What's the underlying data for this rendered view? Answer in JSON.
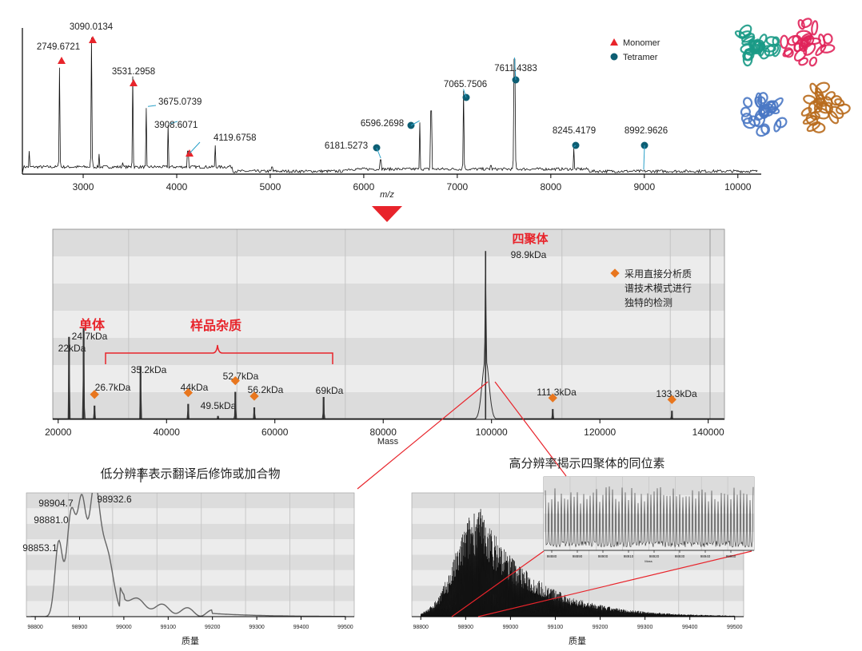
{
  "colors": {
    "red": "#e8242b",
    "teal": "#0d5e73",
    "orange": "#e8761e",
    "bandDark": "#dcdcdc",
    "bandLight": "#ececec",
    "trace": "#222222",
    "protein_teal": "#1a9a86",
    "protein_pink": "#e0245a",
    "protein_blue": "#4a78c4",
    "protein_brown": "#b86a1c"
  },
  "chart_data": [
    {
      "id": "native-ms",
      "type": "line",
      "xlabel": "m/z",
      "xlim": [
        2350,
        10250
      ],
      "xticks": [
        3000,
        4000,
        5000,
        6000,
        7000,
        8000,
        9000,
        10000
      ],
      "legend": {
        "position": "top-right",
        "entries": [
          {
            "name": "Monomer",
            "marker": "triangle"
          },
          {
            "name": "Tetramer",
            "marker": "circle"
          }
        ]
      },
      "peaks": [
        {
          "mz": 2749.6721,
          "label": "2749.6721",
          "height": 0.74,
          "marker": "triangle"
        },
        {
          "mz": 3090.0134,
          "label": "3090.0134",
          "height": 0.95,
          "marker": "triangle"
        },
        {
          "mz": 3531.2958,
          "label": "3531.2958",
          "height": 0.68,
          "marker": "triangle"
        },
        {
          "mz": 3675.0739,
          "label": "3675.0739",
          "height": 0.46,
          "marker": "none"
        },
        {
          "mz": 3908.6071,
          "label": "3908.6071",
          "height": 0.34,
          "marker": "none"
        },
        {
          "mz": 4119.6758,
          "label": "4119.6758",
          "height": 0.16,
          "marker": "triangle"
        },
        {
          "mz": 6181.5273,
          "label": "6181.5273",
          "height": 0.1,
          "marker": "circle"
        },
        {
          "mz": 6596.2698,
          "label": "6596.2698",
          "height": 0.36,
          "marker": "circle"
        },
        {
          "mz": 7065.7506,
          "label": "7065.7506",
          "height": 0.58,
          "marker": "circle"
        },
        {
          "mz": 7611.4383,
          "label": "7611.4383",
          "height": 0.8,
          "marker": "circle"
        },
        {
          "mz": 8245.4179,
          "label": "8245.4179",
          "height": 0.18,
          "marker": "circle"
        },
        {
          "mz": 8992.9626,
          "label": "8992.9626",
          "height": 0.02,
          "marker": "circle"
        }
      ],
      "minor_peaks": [
        {
          "mz": 2420,
          "height": 0.16
        },
        {
          "mz": 3170,
          "height": 0.14
        },
        {
          "mz": 3420,
          "height": 0.08
        },
        {
          "mz": 4410,
          "height": 0.2
        },
        {
          "mz": 4570,
          "height": 0.06
        },
        {
          "mz": 5020,
          "height": 0.05
        },
        {
          "mz": 6720,
          "height": 0.44
        },
        {
          "mz": 7360,
          "height": 0.06
        }
      ]
    },
    {
      "id": "deconvoluted",
      "type": "line",
      "xlabel": "Mass",
      "xlim": [
        19000,
        143000
      ],
      "xticks": [
        20000,
        40000,
        60000,
        80000,
        100000,
        120000,
        140000
      ],
      "peaks": [
        {
          "mass": 22000,
          "label": "22kDa",
          "height": 0.48,
          "diamond": false
        },
        {
          "mass": 24700,
          "label": "24.7kDa",
          "height": 0.53,
          "diamond": false
        },
        {
          "mass": 26700,
          "label": "26.7kDa",
          "height": 0.08,
          "diamond": true
        },
        {
          "mass": 35200,
          "label": "35.2kDa",
          "height": 0.31,
          "diamond": false
        },
        {
          "mass": 44000,
          "label": "44kDa",
          "height": 0.09,
          "diamond": true
        },
        {
          "mass": 49500,
          "label": "49.5kDa",
          "height": 0.02,
          "diamond": false
        },
        {
          "mass": 52700,
          "label": "52.7kDa",
          "height": 0.16,
          "diamond": true
        },
        {
          "mass": 56200,
          "label": "56.2kDa",
          "height": 0.07,
          "diamond": true
        },
        {
          "mass": 69000,
          "label": "69kDa",
          "height": 0.13,
          "diamond": false
        },
        {
          "mass": 98900,
          "label": "98.9kDa",
          "height": 0.98,
          "diamond": false
        },
        {
          "mass": 111300,
          "label": "111.3kDa",
          "height": 0.06,
          "diamond": true
        },
        {
          "mass": 133300,
          "label": "133.3kDa",
          "height": 0.05,
          "diamond": true
        }
      ],
      "annotations": {
        "monomer": "单体",
        "impurities": "样品杂质",
        "tetramer": "四聚体",
        "legend_line1": "采用直接分析质",
        "legend_line2": "谱技术模式进行",
        "legend_line3": "独特的检测"
      }
    },
    {
      "id": "low-res",
      "type": "line",
      "title": "低分辨率表示翻译后修饰或加合物",
      "xlabel": "质量",
      "xlim": [
        98780,
        99520
      ],
      "xticks": [
        98800,
        98900,
        99000,
        99100,
        99200,
        99300,
        99400,
        99500
      ],
      "peaks": [
        {
          "mass": 98853.1,
          "label": "98853.1"
        },
        {
          "mass": 98881.0,
          "label": "98881.0"
        },
        {
          "mass": 98904.7,
          "label": "98904.7"
        },
        {
          "mass": 98932.6,
          "label": "98932.6"
        }
      ]
    },
    {
      "id": "high-res",
      "type": "line",
      "title": "高分辨率揭示四聚体的同位素",
      "xlabel": "质量",
      "xlim": [
        98780,
        99520
      ],
      "xticks": [
        98800,
        98900,
        99000,
        99100,
        99200,
        99300,
        99400,
        99500
      ],
      "apex": 98930,
      "inset": {
        "xlabel": "Mass",
        "xticks": [
          "98880",
          "98890",
          "98900",
          "98910",
          "98920",
          "98930",
          "98940",
          "98950"
        ]
      }
    }
  ]
}
